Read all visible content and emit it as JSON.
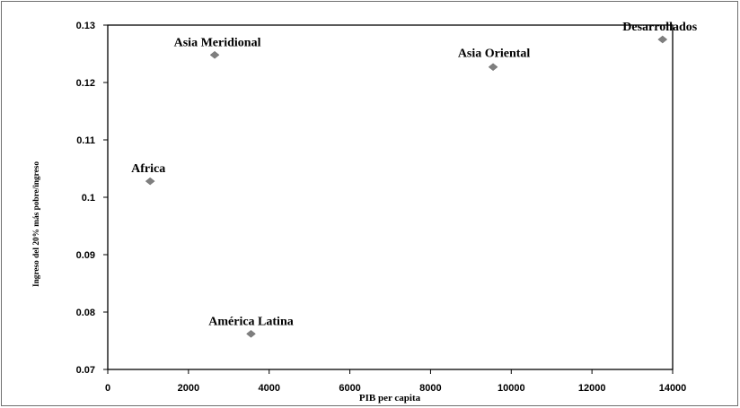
{
  "chart_data": {
    "type": "scatter",
    "title": "",
    "xlabel": "PIB per capita",
    "ylabel": "Ingreso del 20% más pobre/ingreso",
    "xlim": [
      0,
      14000
    ],
    "ylim": [
      0.07,
      0.13
    ],
    "x_ticks": [
      0,
      2000,
      4000,
      6000,
      8000,
      10000,
      12000,
      14000
    ],
    "x_tick_labels": [
      "0",
      "2000",
      "4000",
      "6000",
      "8000",
      "10000",
      "12000",
      "14000"
    ],
    "y_ticks": [
      0.07,
      0.08,
      0.09,
      0.1,
      0.11,
      0.12,
      0.13
    ],
    "y_tick_labels": [
      "0.07",
      "0.08",
      "0.09",
      "0.1",
      "0.11",
      "0.12",
      "0.13"
    ],
    "grid": false,
    "legend": "none",
    "marker_color": "#7f7f7f",
    "points": [
      {
        "label": "Africa",
        "x": 1050,
        "y": 0.1028
      },
      {
        "label": "Asia Meridional",
        "x": 2650,
        "y": 0.1248
      },
      {
        "label": "América Latina",
        "x": 3550,
        "y": 0.0762
      },
      {
        "label": "Asia Oriental",
        "x": 9550,
        "y": 0.1227
      },
      {
        "label": "Desarrollados",
        "x": 13750,
        "y": 0.1275
      }
    ]
  }
}
